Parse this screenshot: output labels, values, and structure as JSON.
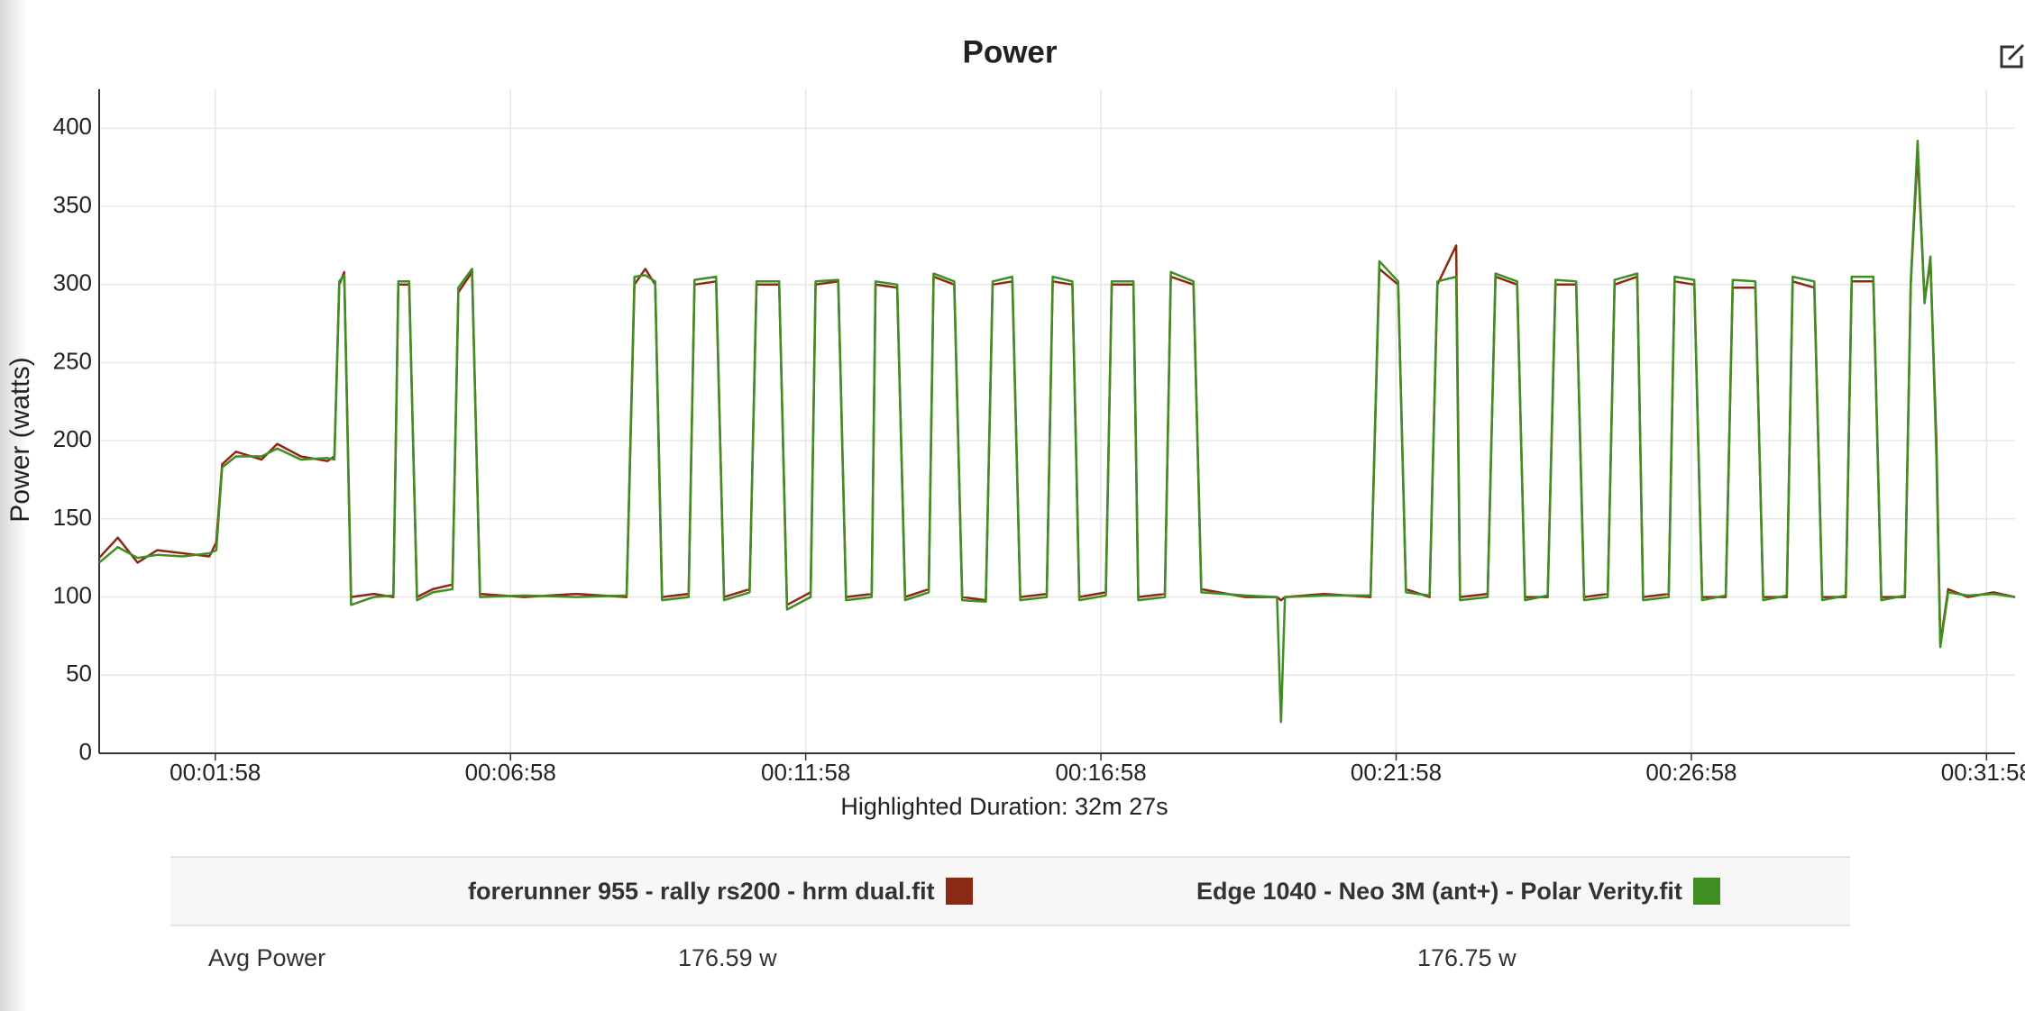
{
  "chart_data": {
    "type": "line",
    "title": "Power",
    "ylabel": "Power (watts)",
    "footer": "Highlighted Duration: 32m 27s",
    "x": [
      0,
      19,
      39,
      59,
      85,
      112,
      119,
      125,
      139,
      165,
      181,
      205,
      232,
      239,
      244,
      249,
      256,
      279,
      299,
      304,
      315,
      323,
      339,
      359,
      365,
      379,
      387,
      432,
      485,
      536,
      544,
      555,
      565,
      572,
      599,
      605,
      627,
      635,
      661,
      668,
      691,
      699,
      723,
      728,
      751,
      759,
      785,
      789,
      811,
      819,
      843,
      848,
      869,
      877,
      901,
      908,
      928,
      936,
      963,
      969,
      989,
      996,
      1023,
      1029,
      1051,
      1056,
      1083,
      1089,
      1112,
      1120,
      1165,
      1197,
      1201,
      1205,
      1245,
      1292,
      1301,
      1320,
      1328,
      1352,
      1360,
      1379,
      1383,
      1411,
      1419,
      1441,
      1449,
      1472,
      1480,
      1501,
      1509,
      1533,
      1540,
      1563,
      1569,
      1595,
      1601,
      1621,
      1629,
      1653,
      1660,
      1683,
      1691,
      1715,
      1721,
      1743,
      1751,
      1775,
      1781,
      1803,
      1811,
      1835,
      1841,
      1848,
      1855,
      1861,
      1867,
      1871,
      1879,
      1899,
      1925,
      1947
    ],
    "series": [
      {
        "name": "forerunner 955 - rally rs200 - hrm dual.fit",
        "color": "#8b2a14",
        "values": [
          125,
          138,
          122,
          130,
          128,
          126,
          135,
          185,
          193,
          188,
          198,
          190,
          187,
          190,
          300,
          308,
          100,
          102,
          100,
          300,
          300,
          100,
          105,
          108,
          295,
          308,
          102,
          100,
          102,
          100,
          300,
          310,
          300,
          100,
          102,
          300,
          302,
          100,
          105,
          300,
          300,
          95,
          103,
          300,
          302,
          100,
          102,
          300,
          298,
          100,
          105,
          305,
          300,
          100,
          98,
          300,
          302,
          100,
          102,
          302,
          300,
          100,
          103,
          300,
          300,
          100,
          102,
          305,
          300,
          105,
          100,
          100,
          98,
          100,
          102,
          100,
          310,
          300,
          105,
          100,
          300,
          325,
          100,
          102,
          305,
          300,
          100,
          100,
          300,
          300,
          100,
          102,
          300,
          305,
          100,
          102,
          302,
          300,
          100,
          100,
          298,
          298,
          100,
          100,
          302,
          298,
          100,
          100,
          302,
          302,
          100,
          100,
          300,
          385,
          290,
          315,
          200,
          70,
          105,
          100,
          103,
          100
        ]
      },
      {
        "name": "Edge 1040 - Neo 3M (ant+) - Polar Verity.fit",
        "color": "#3e8e22",
        "values": [
          122,
          132,
          125,
          127,
          126,
          128,
          130,
          183,
          190,
          190,
          195,
          188,
          189,
          188,
          302,
          306,
          95,
          100,
          101,
          302,
          302,
          98,
          103,
          105,
          298,
          310,
          100,
          101,
          100,
          101,
          305,
          306,
          302,
          98,
          100,
          303,
          305,
          98,
          103,
          302,
          302,
          92,
          100,
          302,
          303,
          98,
          100,
          302,
          300,
          98,
          103,
          307,
          302,
          98,
          97,
          302,
          305,
          98,
          100,
          305,
          302,
          98,
          101,
          302,
          302,
          98,
          100,
          308,
          302,
          103,
          101,
          100,
          20,
          100,
          101,
          101,
          315,
          302,
          103,
          101,
          302,
          305,
          98,
          100,
          307,
          302,
          98,
          101,
          303,
          302,
          98,
          100,
          303,
          307,
          98,
          100,
          305,
          303,
          98,
          101,
          303,
          302,
          98,
          101,
          305,
          302,
          98,
          101,
          305,
          305,
          98,
          101,
          302,
          392,
          288,
          318,
          190,
          68,
          103,
          101,
          102,
          100
        ]
      }
    ],
    "xlim": [
      0,
      1947
    ],
    "ylim": [
      0,
      425
    ],
    "xticks": [
      {
        "value": 118,
        "label": "00:01:58"
      },
      {
        "value": 418,
        "label": "00:06:58"
      },
      {
        "value": 718,
        "label": "00:11:58"
      },
      {
        "value": 1018,
        "label": "00:16:58"
      },
      {
        "value": 1318,
        "label": "00:21:58"
      },
      {
        "value": 1618,
        "label": "00:26:58"
      },
      {
        "value": 1918,
        "label": "00:31:58"
      }
    ],
    "yticks": [
      0,
      50,
      100,
      150,
      200,
      250,
      300,
      350,
      400
    ],
    "grid": true
  },
  "summary_table": {
    "rows": [
      [
        "Avg Power",
        "176.59 w",
        "176.75 w"
      ]
    ]
  }
}
